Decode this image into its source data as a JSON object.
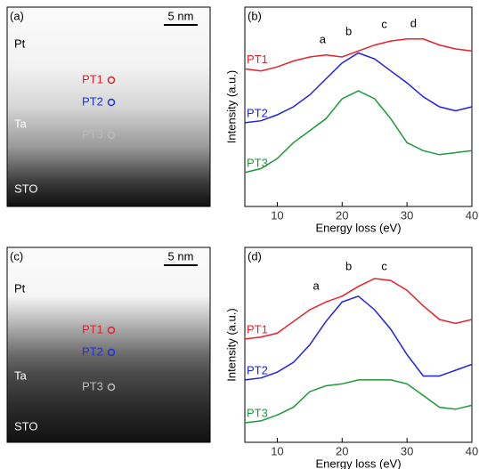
{
  "images": [
    {
      "label": "(a)",
      "scale": "5 nm",
      "layers": [
        "Pt",
        "Ta",
        "STO"
      ],
      "points": [
        "PT1",
        "PT2",
        "PT3"
      ],
      "point_colors": [
        "#e0202a",
        "#2030e0",
        "#bbbbbb"
      ]
    },
    {
      "label": "(c)",
      "scale": "5 nm",
      "layers": [
        "Pt",
        "Ta",
        "STO"
      ],
      "points": [
        "PT1",
        "PT2",
        "PT3"
      ],
      "point_colors": [
        "#e0202a",
        "#2030e0",
        "#bbbbbb"
      ]
    }
  ],
  "chart_data": [
    {
      "type": "line",
      "panel": "(b)",
      "x_label": "Energy loss (eV)",
      "y_label": "Intensity (a.u.)",
      "x": [
        5,
        7.5,
        10,
        12.5,
        15,
        17.5,
        20,
        22.5,
        25,
        27.5,
        30,
        32.5,
        35,
        37.5,
        40
      ],
      "xlim": [
        5,
        40
      ],
      "xticks": [
        10,
        20,
        30,
        40
      ],
      "ylim": [
        0,
        100
      ],
      "annotations": [
        "a",
        "b",
        "c",
        "d"
      ],
      "series": [
        {
          "name": "PT1",
          "color": "#e8202a",
          "values": [
            69,
            68,
            70,
            73,
            75,
            76,
            75,
            78,
            81,
            83,
            84,
            84,
            81,
            79,
            78
          ]
        },
        {
          "name": "PT2",
          "color": "#2020e0",
          "values": [
            42,
            43,
            46,
            50,
            56,
            64,
            72,
            77,
            74,
            68,
            62,
            55,
            50,
            48,
            50
          ]
        },
        {
          "name": "PT3",
          "color": "#1a9a3a",
          "values": [
            17,
            19,
            24,
            32,
            38,
            44,
            54,
            58,
            54,
            44,
            32,
            28,
            26,
            27,
            28
          ]
        }
      ]
    },
    {
      "type": "line",
      "panel": "(d)",
      "x_label": "Energy loss (eV)",
      "y_label": "Intensity (a.u.)",
      "x": [
        5,
        7.5,
        10,
        12.5,
        15,
        17.5,
        20,
        22.5,
        25,
        27.5,
        30,
        32.5,
        35,
        37.5,
        40
      ],
      "xlim": [
        5,
        40
      ],
      "xticks": [
        10,
        20,
        30,
        40
      ],
      "ylim": [
        0,
        100
      ],
      "annotations": [
        "a",
        "b",
        "c"
      ],
      "series": [
        {
          "name": "PT1",
          "color": "#e8202a",
          "values": [
            53,
            54,
            56,
            62,
            68,
            72,
            75,
            80,
            84,
            83,
            78,
            70,
            63,
            61,
            63
          ]
        },
        {
          "name": "PT2",
          "color": "#2020e0",
          "values": [
            32,
            33,
            36,
            41,
            50,
            62,
            72,
            75,
            68,
            58,
            45,
            34,
            34,
            37,
            40
          ]
        },
        {
          "name": "PT3",
          "color": "#1a9a3a",
          "values": [
            10,
            11,
            14,
            18,
            26,
            29,
            30,
            32,
            32,
            32,
            30,
            24,
            18,
            17,
            19
          ]
        }
      ]
    }
  ]
}
